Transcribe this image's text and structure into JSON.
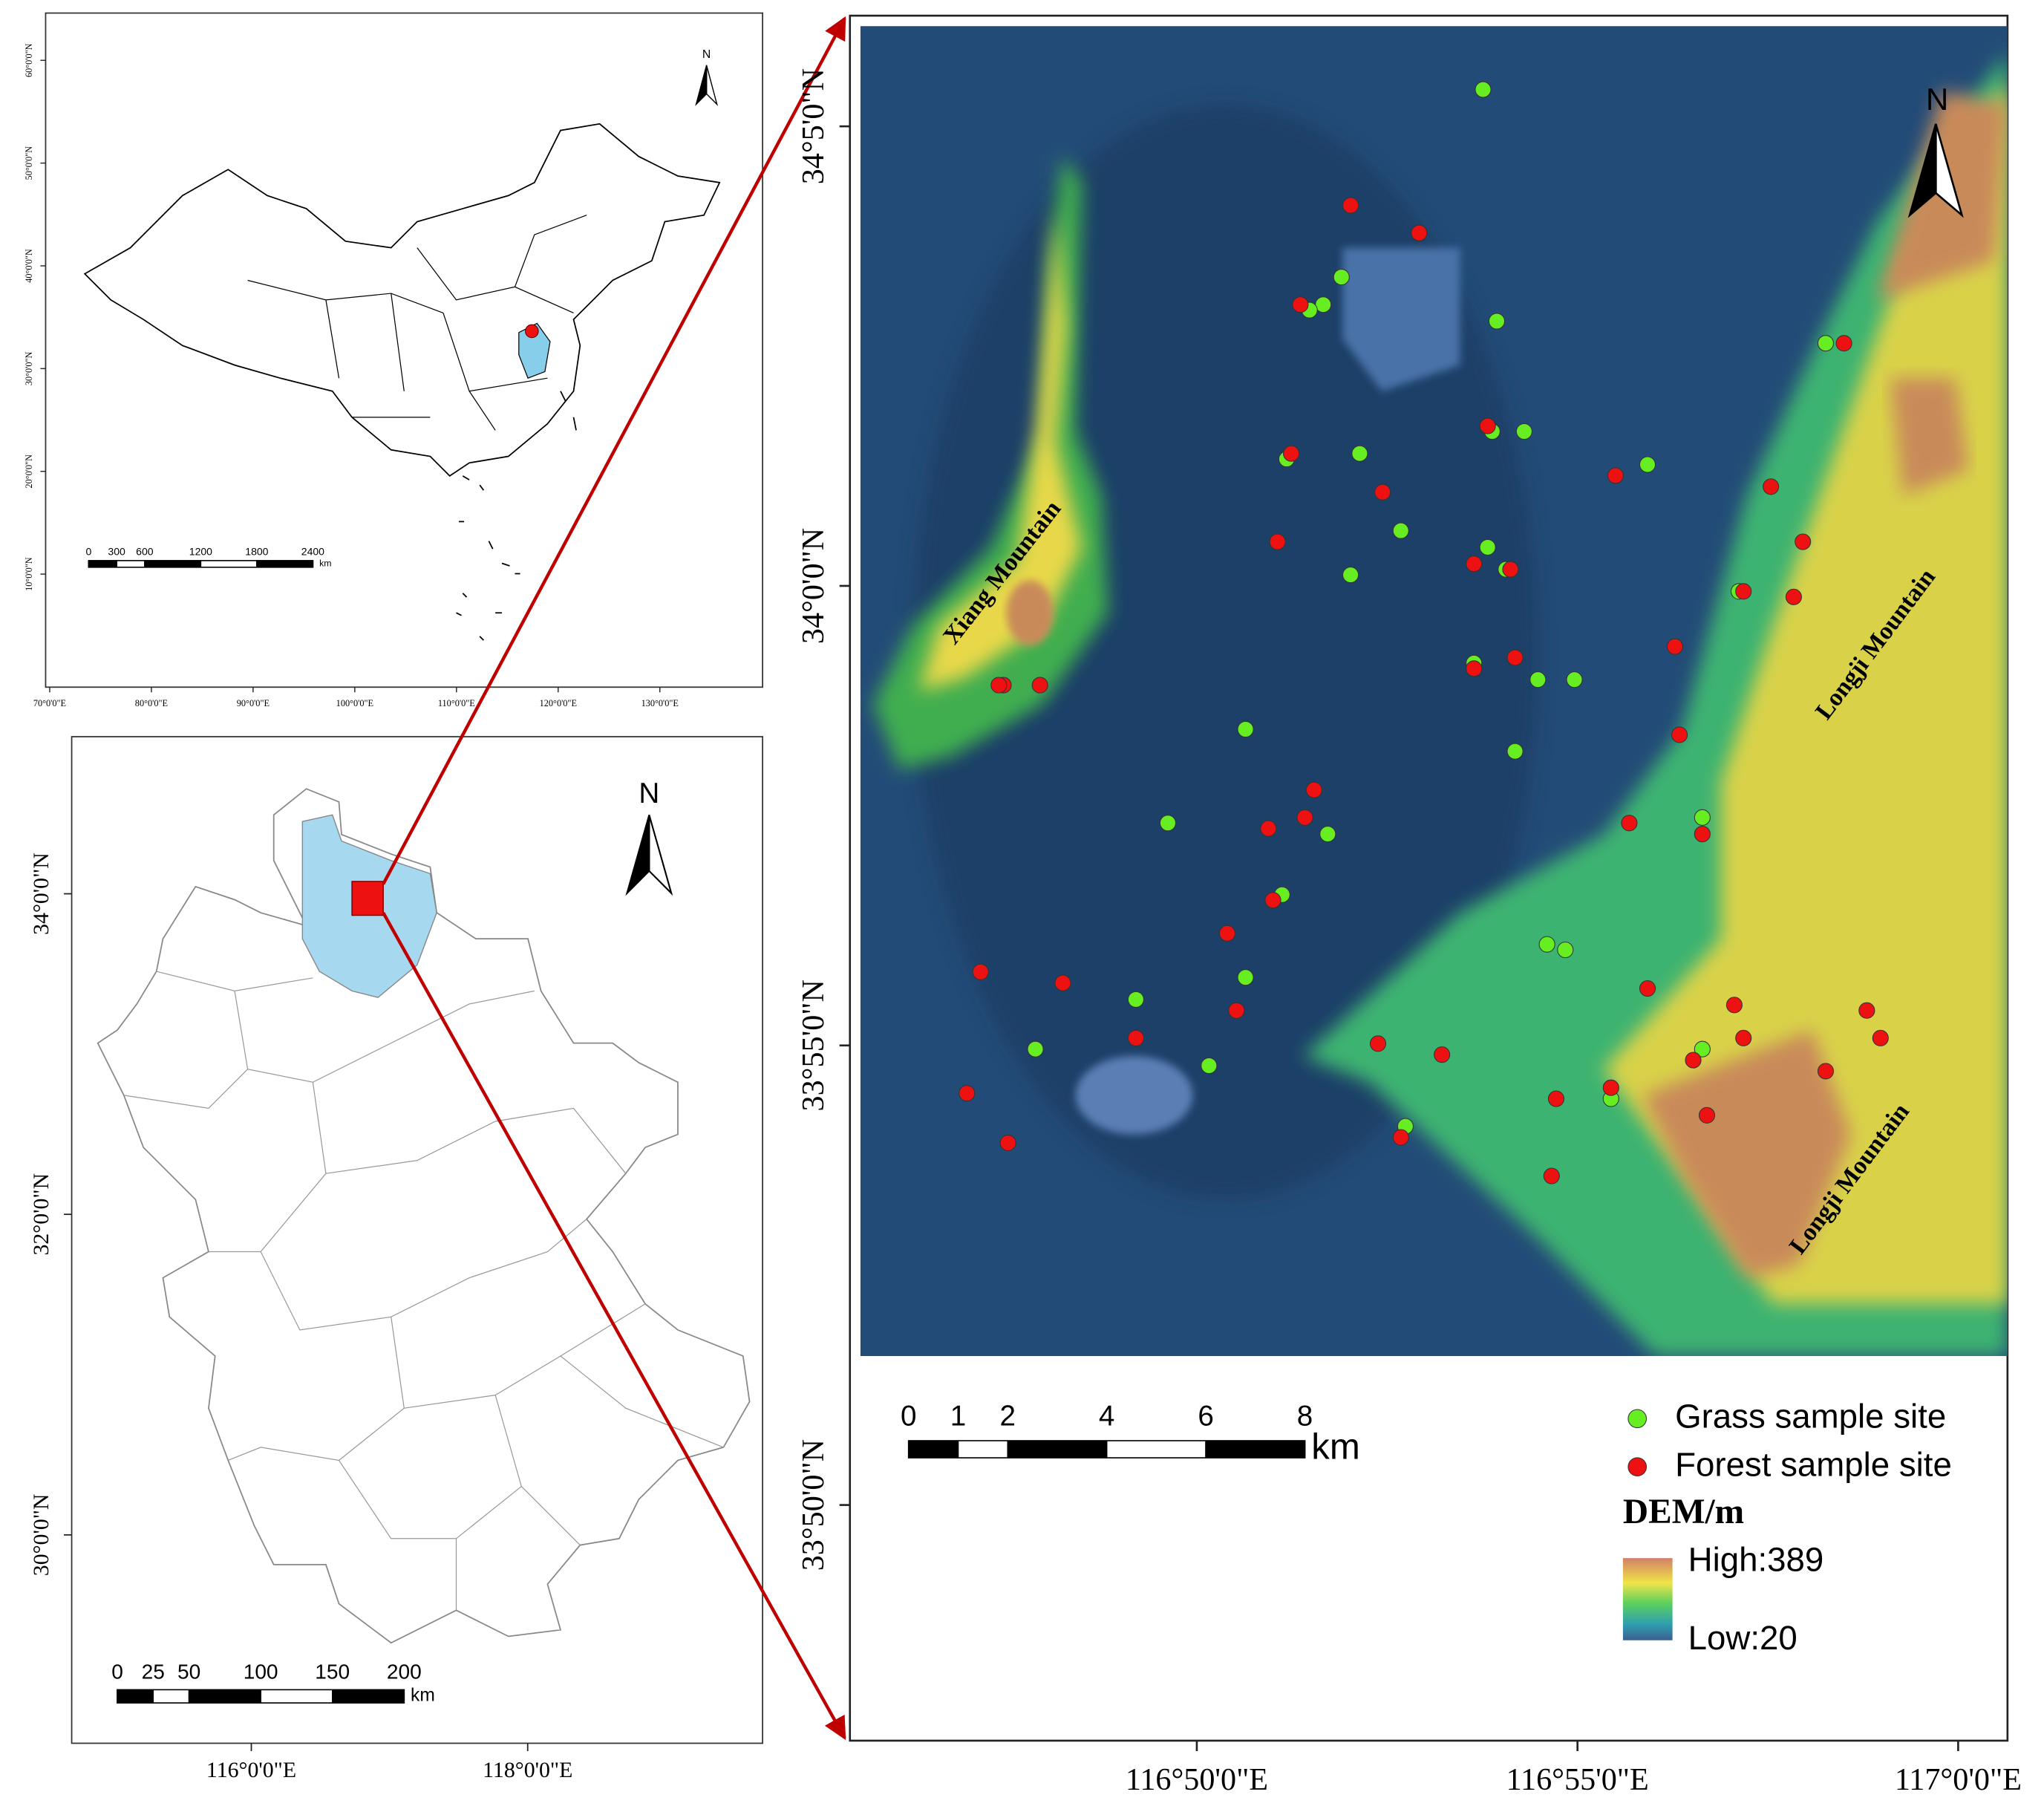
{
  "chart_data": {
    "type": "scatter",
    "xlim": [
      116.7574,
      117.0108
    ],
    "ylim": [
      33.7906,
      34.1034
    ],
    "xticks": [
      {
        "value": 116.833333,
        "label": "116°50'0\"E"
      },
      {
        "value": 116.916667,
        "label": "116°55'0\"E"
      },
      {
        "value": 117,
        "label": "117°0'0\"E"
      }
    ],
    "yticks": [
      {
        "value": 34.083333,
        "label": "34°5'0\"N"
      },
      {
        "value": 34,
        "label": "34°0'0\"N"
      },
      {
        "value": 33.916667,
        "label": "33°55'0\"N"
      },
      {
        "value": 33.833333,
        "label": "33°50'0\"N"
      }
    ],
    "series": [
      {
        "name": "Grass sample site",
        "color": "#66ee22",
        "x": [
          116.896,
          116.882,
          116.865,
          116.861,
          116.858,
          116.899,
          116.971,
          116.898,
          116.905,
          116.853,
          116.869,
          116.932,
          116.878,
          116.897,
          116.867,
          116.901,
          116.952,
          116.894,
          116.908,
          116.916,
          116.844,
          116.903,
          116.944,
          116.827,
          116.862,
          116.852,
          116.91,
          116.914,
          116.844,
          116.82,
          116.798,
          116.944,
          116.836,
          116.924,
          116.879
        ],
        "values": [
          34.09,
          34.064,
          34.056,
          34.051,
          34.05,
          34.048,
          34.044,
          34.028,
          34.028,
          34.023,
          34.024,
          34.022,
          34.01,
          34.007,
          34.002,
          34.003,
          33.999,
          33.986,
          33.983,
          33.983,
          33.974,
          33.97,
          33.958,
          33.957,
          33.955,
          33.944,
          33.935,
          33.934,
          33.929,
          33.925,
          33.916,
          33.916,
          33.913,
          33.907,
          33.902
        ]
      },
      {
        "name": "Forest sample site",
        "color": "#ee1111",
        "x": [
          116.867,
          116.882,
          116.856,
          116.975,
          116.854,
          116.897,
          116.925,
          116.874,
          116.959,
          116.851,
          116.966,
          116.894,
          116.902,
          116.953,
          116.964,
          116.903,
          116.894,
          116.938,
          116.791,
          116.79,
          116.799,
          116.939,
          116.859,
          116.857,
          116.849,
          116.928,
          116.944,
          116.85,
          116.84,
          116.786,
          116.804,
          116.842,
          116.932,
          116.951,
          116.98,
          116.873,
          116.82,
          116.953,
          116.983,
          116.887,
          116.942,
          116.971,
          116.783,
          116.912,
          116.924,
          116.945,
          116.878,
          116.792,
          116.911
        ],
        "values": [
          34.069,
          34.064,
          34.051,
          34.044,
          34.024,
          34.029,
          34.02,
          34.017,
          34.018,
          34.008,
          34.008,
          34.004,
          34.003,
          33.999,
          33.998,
          33.987,
          33.985,
          33.989,
          33.982,
          33.982,
          33.982,
          33.973,
          33.963,
          33.958,
          33.956,
          33.957,
          33.955,
          33.943,
          33.937,
          33.93,
          33.928,
          33.923,
          33.927,
          33.924,
          33.923,
          33.917,
          33.918,
          33.918,
          33.918,
          33.915,
          33.914,
          33.912,
          33.908,
          33.907,
          33.909,
          33.904,
          33.9,
          33.899,
          33.893
        ]
      }
    ],
    "annotations": [
      "Xiang Mountain",
      "Longji Mountain",
      "Longji Mountain"
    ],
    "north": "N",
    "scale_bar": {
      "ticks": [
        0,
        1,
        2,
        4,
        6,
        8
      ],
      "unit": "km"
    },
    "dem": {
      "title": "DEM/m",
      "high": {
        "value": 389,
        "label": "High:389"
      },
      "low": {
        "value": 20,
        "label": "Low:20"
      }
    }
  },
  "inset_china": {
    "xlim": [
      69.6,
      140.1
    ],
    "ylim": [
      -1,
      64.6
    ],
    "xticks": [
      {
        "value": 70,
        "label": "70°0'0\"E"
      },
      {
        "value": 80,
        "label": "80°0'0\"E"
      },
      {
        "value": 90,
        "label": "90°0'0\"E"
      },
      {
        "value": 100,
        "label": "100°0'0\"E"
      },
      {
        "value": 110,
        "label": "110°0'0\"E"
      },
      {
        "value": 120,
        "label": "120°0'0\"E"
      },
      {
        "value": 130,
        "label": "130°0'0\"E"
      }
    ],
    "yticks": [
      {
        "value": 10,
        "label": "10°0'0\"N"
      },
      {
        "value": 20,
        "label": "20°0'0\"N"
      },
      {
        "value": 30,
        "label": "30°0'0\"N"
      },
      {
        "value": 40,
        "label": "40°0'0\"N"
      },
      {
        "value": 50,
        "label": "50°0'0\"N"
      },
      {
        "value": 60,
        "label": "60°0'0\"N"
      }
    ],
    "scale_bar": {
      "ticks": [
        0,
        300,
        600,
        1200,
        1800,
        2400
      ],
      "unit": "km"
    },
    "north": "N"
  },
  "inset_anhui": {
    "xlim": [
      114.7,
      119.7
    ],
    "ylim": [
      28.7,
      34.98
    ],
    "xticks": [
      {
        "value": 116,
        "label": "116°0'0\"E"
      },
      {
        "value": 118,
        "label": "118°0'0\"E"
      }
    ],
    "yticks": [
      {
        "value": 34,
        "label": "34°0'0\"N"
      },
      {
        "value": 32,
        "label": "32°0'0\"N"
      },
      {
        "value": 30,
        "label": "30°0'0\"N"
      }
    ],
    "scale_bar": {
      "ticks": [
        0,
        25,
        50,
        100,
        150,
        200
      ],
      "unit": "km"
    },
    "north": "N"
  }
}
